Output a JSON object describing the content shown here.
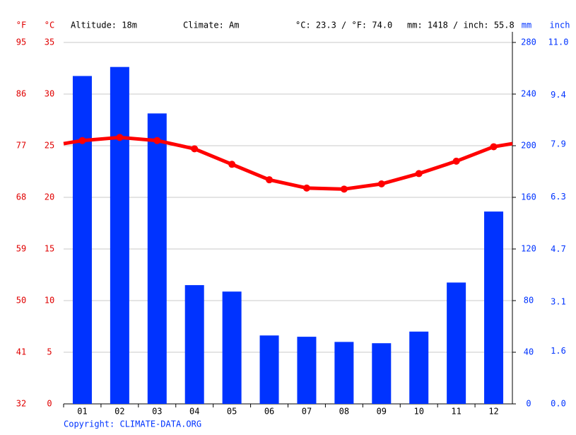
{
  "chart_data": {
    "type": "combo",
    "info": [
      "Altitude: 18m",
      "Climate: Am",
      "°C: 23.3 / °F: 74.0",
      "mm: 1418 / inch: 55.8"
    ],
    "unit_labels": {
      "f": "°F",
      "c": "°C",
      "mm": "mm",
      "inch": "inch"
    },
    "credit": "Copyright: CLIMATE-DATA.ORG",
    "categories": [
      "01",
      "02",
      "03",
      "04",
      "05",
      "06",
      "07",
      "08",
      "09",
      "10",
      "11",
      "12"
    ],
    "series": [
      {
        "type": "bar",
        "axis": "y2",
        "color": "#0033ff",
        "values": [
          254,
          261,
          225,
          92,
          87,
          53,
          52,
          48,
          47,
          56,
          94,
          149
        ]
      },
      {
        "type": "line",
        "color": "#ff0000",
        "values": [
          25.5,
          25.8,
          25.5,
          24.7,
          23.2,
          21.7,
          20.9,
          20.8,
          21.3,
          22.3,
          23.5,
          24.9
        ]
      }
    ],
    "ylim": [
      0,
      35
    ],
    "yticks": [
      0,
      5,
      10,
      15,
      20,
      25,
      30,
      35
    ],
    "y3lim": [
      32,
      95
    ],
    "y3ticks": [
      32,
      41,
      50,
      59,
      68,
      77,
      86,
      95
    ],
    "y2lim": [
      0,
      280
    ],
    "y2ticks": [
      0,
      40,
      80,
      120,
      160,
      200,
      240,
      280
    ],
    "y4lim": [
      0,
      11
    ],
    "y4ticks": [
      {
        "value": 0,
        "label": "0.0"
      },
      1.6,
      3.1,
      4.7,
      6.3,
      7.9,
      9.4,
      {
        "value": 11,
        "label": "11.0"
      }
    ],
    "grid": true
  }
}
